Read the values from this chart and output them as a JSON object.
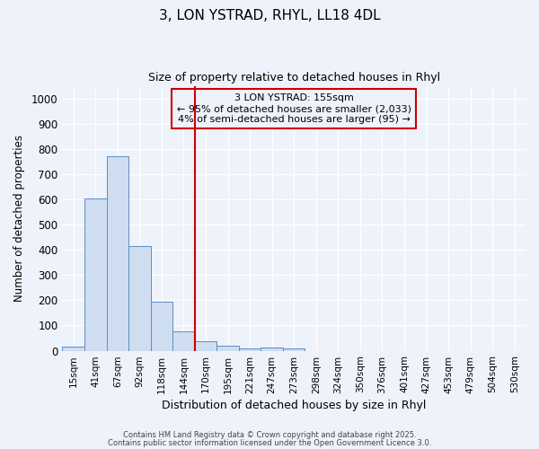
{
  "title1": "3, LON YSTRAD, RHYL, LL18 4DL",
  "title2": "Size of property relative to detached houses in Rhyl",
  "xlabel": "Distribution of detached houses by size in Rhyl",
  "ylabel": "Number of detached properties",
  "bar_labels": [
    "15sqm",
    "41sqm",
    "67sqm",
    "92sqm",
    "118sqm",
    "144sqm",
    "170sqm",
    "195sqm",
    "221sqm",
    "247sqm",
    "273sqm",
    "298sqm",
    "324sqm",
    "350sqm",
    "376sqm",
    "401sqm",
    "427sqm",
    "453sqm",
    "479sqm",
    "504sqm",
    "530sqm"
  ],
  "bar_values": [
    15,
    605,
    770,
    415,
    195,
    78,
    38,
    20,
    10,
    12,
    8,
    0,
    0,
    0,
    0,
    0,
    0,
    0,
    0,
    0,
    0
  ],
  "bar_color": "#cfddf0",
  "bar_edge_color": "#5b8ec4",
  "ylim": [
    0,
    1050
  ],
  "yticks": [
    0,
    100,
    200,
    300,
    400,
    500,
    600,
    700,
    800,
    900,
    1000
  ],
  "vline_x": 5.5,
  "vline_color": "#cc0000",
  "annotation_text": "3 LON YSTRAD: 155sqm\n← 95% of detached houses are smaller (2,033)\n4% of semi-detached houses are larger (95) →",
  "annotation_box_color": "#cc0000",
  "bg_color": "#eef2fa",
  "grid_color": "#ffffff",
  "footer1": "Contains HM Land Registry data © Crown copyright and database right 2025.",
  "footer2": "Contains public sector information licensed under the Open Government Licence 3.0."
}
